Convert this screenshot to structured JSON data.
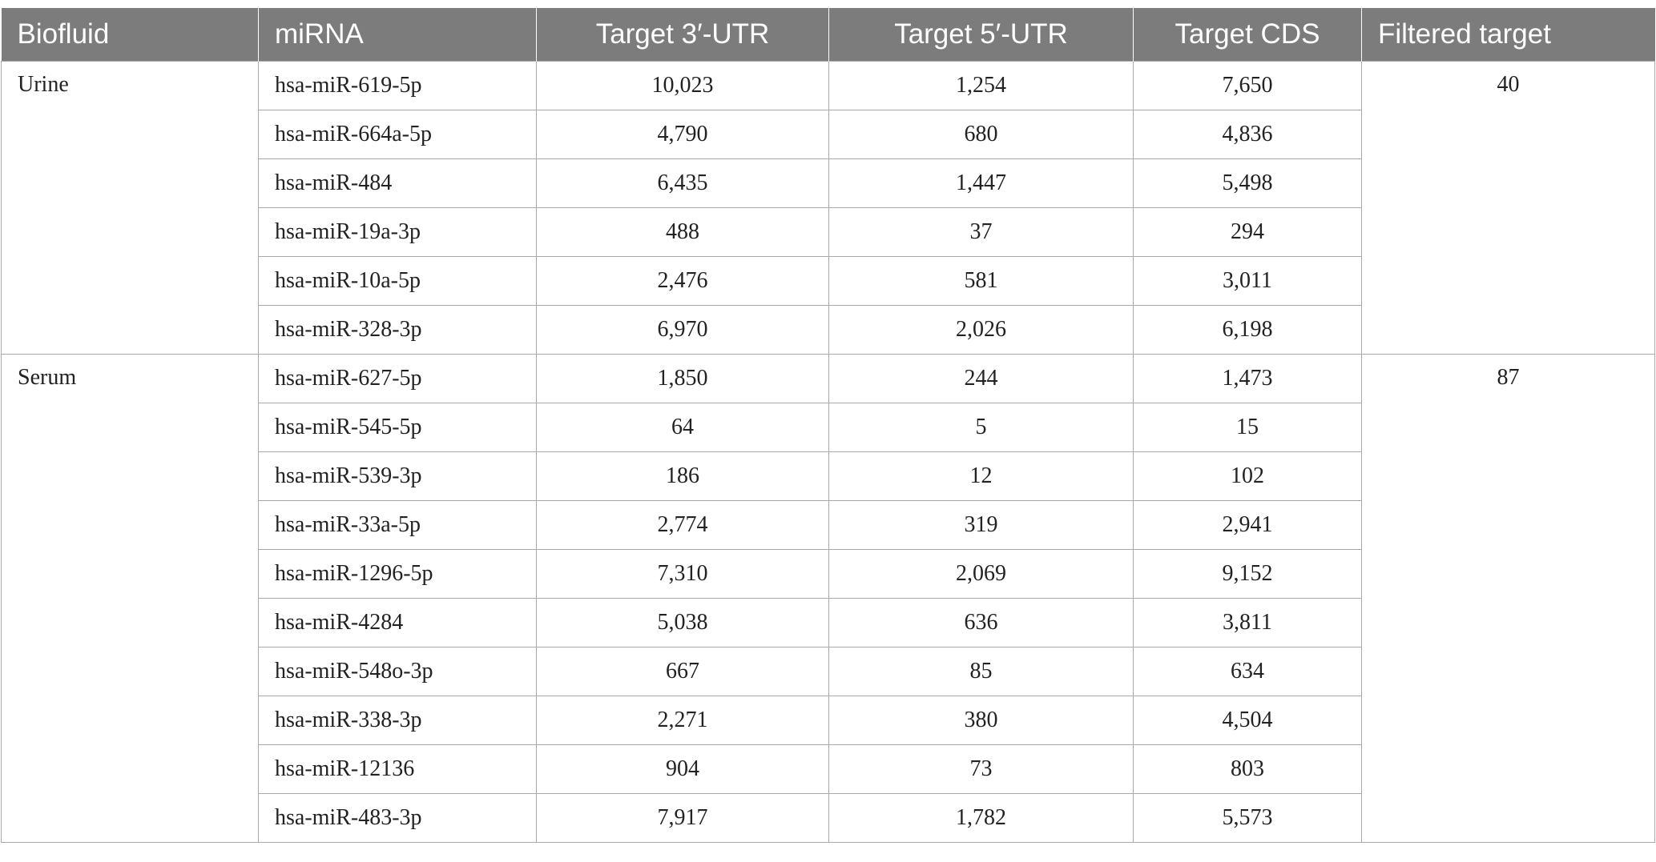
{
  "table": {
    "headers": [
      "Biofluid",
      "miRNA",
      "Target 3′-UTR",
      "Target 5′-UTR",
      "Target CDS",
      "Filtered target"
    ],
    "groups": [
      {
        "biofluid": "Urine",
        "filtered_target": "40",
        "rows": [
          {
            "mirna": "hsa-miR-619-5p",
            "utr3": "10,023",
            "utr5": "1,254",
            "cds": "7,650"
          },
          {
            "mirna": "hsa-miR-664a-5p",
            "utr3": "4,790",
            "utr5": "680",
            "cds": "4,836"
          },
          {
            "mirna": "hsa-miR-484",
            "utr3": "6,435",
            "utr5": "1,447",
            "cds": "5,498"
          },
          {
            "mirna": "hsa-miR-19a-3p",
            "utr3": "488",
            "utr5": "37",
            "cds": "294"
          },
          {
            "mirna": "hsa-miR-10a-5p",
            "utr3": "2,476",
            "utr5": "581",
            "cds": "3,011"
          },
          {
            "mirna": "hsa-miR-328-3p",
            "utr3": "6,970",
            "utr5": "2,026",
            "cds": "6,198"
          }
        ]
      },
      {
        "biofluid": "Serum",
        "filtered_target": "87",
        "rows": [
          {
            "mirna": "hsa-miR-627-5p",
            "utr3": "1,850",
            "utr5": "244",
            "cds": "1,473"
          },
          {
            "mirna": "hsa-miR-545-5p",
            "utr3": "64",
            "utr5": "5",
            "cds": "15"
          },
          {
            "mirna": "hsa-miR-539-3p",
            "utr3": "186",
            "utr5": "12",
            "cds": "102"
          },
          {
            "mirna": "hsa-miR-33a-5p",
            "utr3": "2,774",
            "utr5": "319",
            "cds": "2,941"
          },
          {
            "mirna": "hsa-miR-1296-5p",
            "utr3": "7,310",
            "utr5": "2,069",
            "cds": "9,152"
          },
          {
            "mirna": "hsa-miR-4284",
            "utr3": "5,038",
            "utr5": "636",
            "cds": "3,811"
          },
          {
            "mirna": "hsa-miR-548o-3p",
            "utr3": "667",
            "utr5": "85",
            "cds": "634"
          },
          {
            "mirna": "hsa-miR-338-3p",
            "utr3": "2,271",
            "utr5": "380",
            "cds": "4,504"
          },
          {
            "mirna": "hsa-miR-12136",
            "utr3": "904",
            "utr5": "73",
            "cds": "803"
          },
          {
            "mirna": "hsa-miR-483-3p",
            "utr3": "7,917",
            "utr5": "1,782",
            "cds": "5,573"
          }
        ]
      }
    ]
  },
  "colors": {
    "header_background": "#7b7c7b",
    "header_text": "#ffffff",
    "grid_line": "#a9a9a9",
    "cell_text": "#222222"
  }
}
